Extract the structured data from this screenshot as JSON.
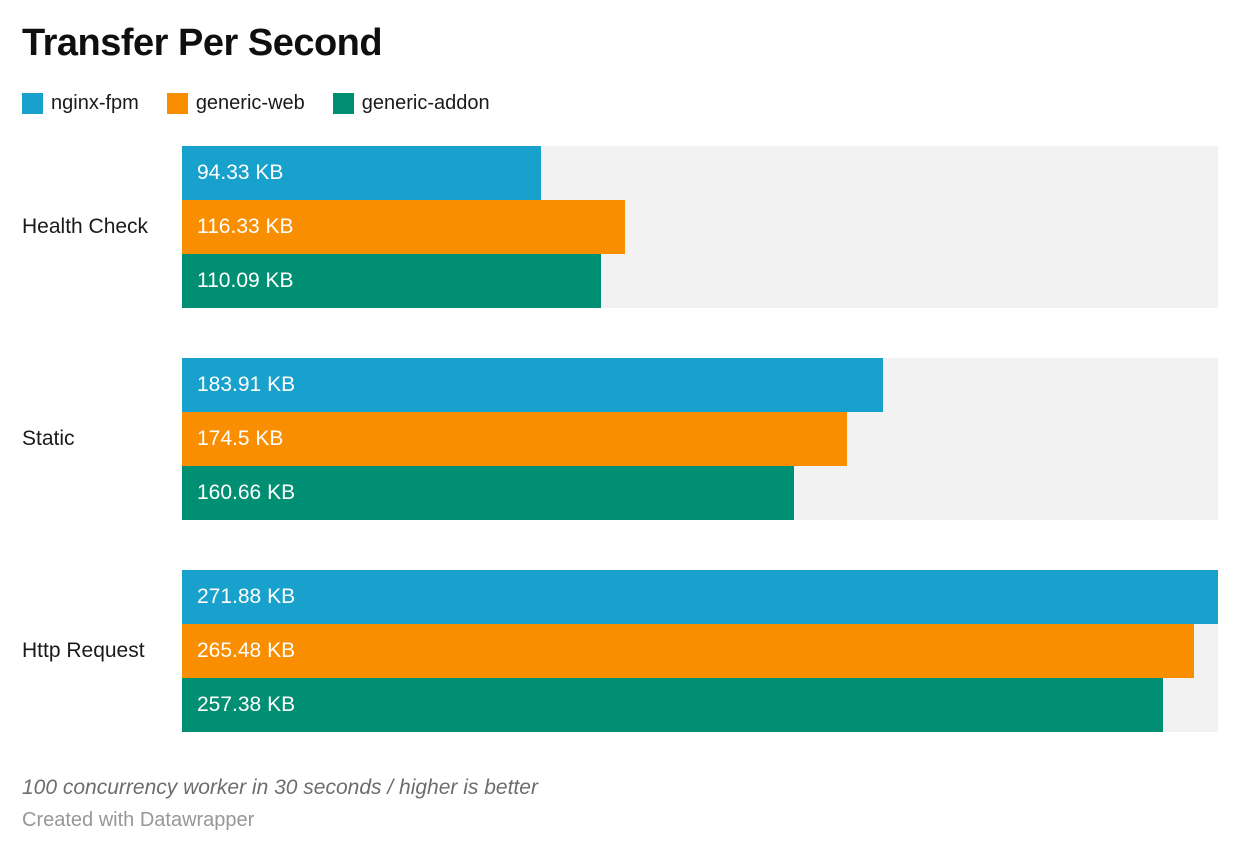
{
  "title": "Transfer Per Second",
  "legend": [
    {
      "label": "nginx-fpm",
      "color": "#18a1cd"
    },
    {
      "label": "generic-web",
      "color": "#f98e00"
    },
    {
      "label": "generic-addon",
      "color": "#008f72"
    }
  ],
  "chart_data": {
    "type": "bar",
    "orientation": "horizontal",
    "title": "Transfer Per Second",
    "categories": [
      "Health Check",
      "Static",
      "Http Request"
    ],
    "series": [
      {
        "name": "nginx-fpm",
        "color": "#18a1cd",
        "values": [
          94.33,
          183.91,
          271.88
        ],
        "labels": [
          "94.33 KB",
          "183.91 KB",
          "271.88 KB"
        ]
      },
      {
        "name": "generic-web",
        "color": "#f98e00",
        "values": [
          116.33,
          174.5,
          265.48
        ],
        "labels": [
          "116.33 KB",
          "174.5 KB",
          "265.48 KB"
        ]
      },
      {
        "name": "generic-addon",
        "color": "#008f72",
        "values": [
          110.09,
          160.66,
          257.38
        ],
        "labels": [
          "110.09 KB",
          "160.66 KB",
          "257.38 KB"
        ]
      }
    ],
    "unit": "KB",
    "xlim": [
      0,
      271.88
    ],
    "track_color": "#f2f2f2",
    "grid": false,
    "legend_position": "top",
    "value_labels": "inside-start"
  },
  "note": "100 concurrency worker in 30 seconds / higher is better",
  "attribution": "Created with Datawrapper"
}
